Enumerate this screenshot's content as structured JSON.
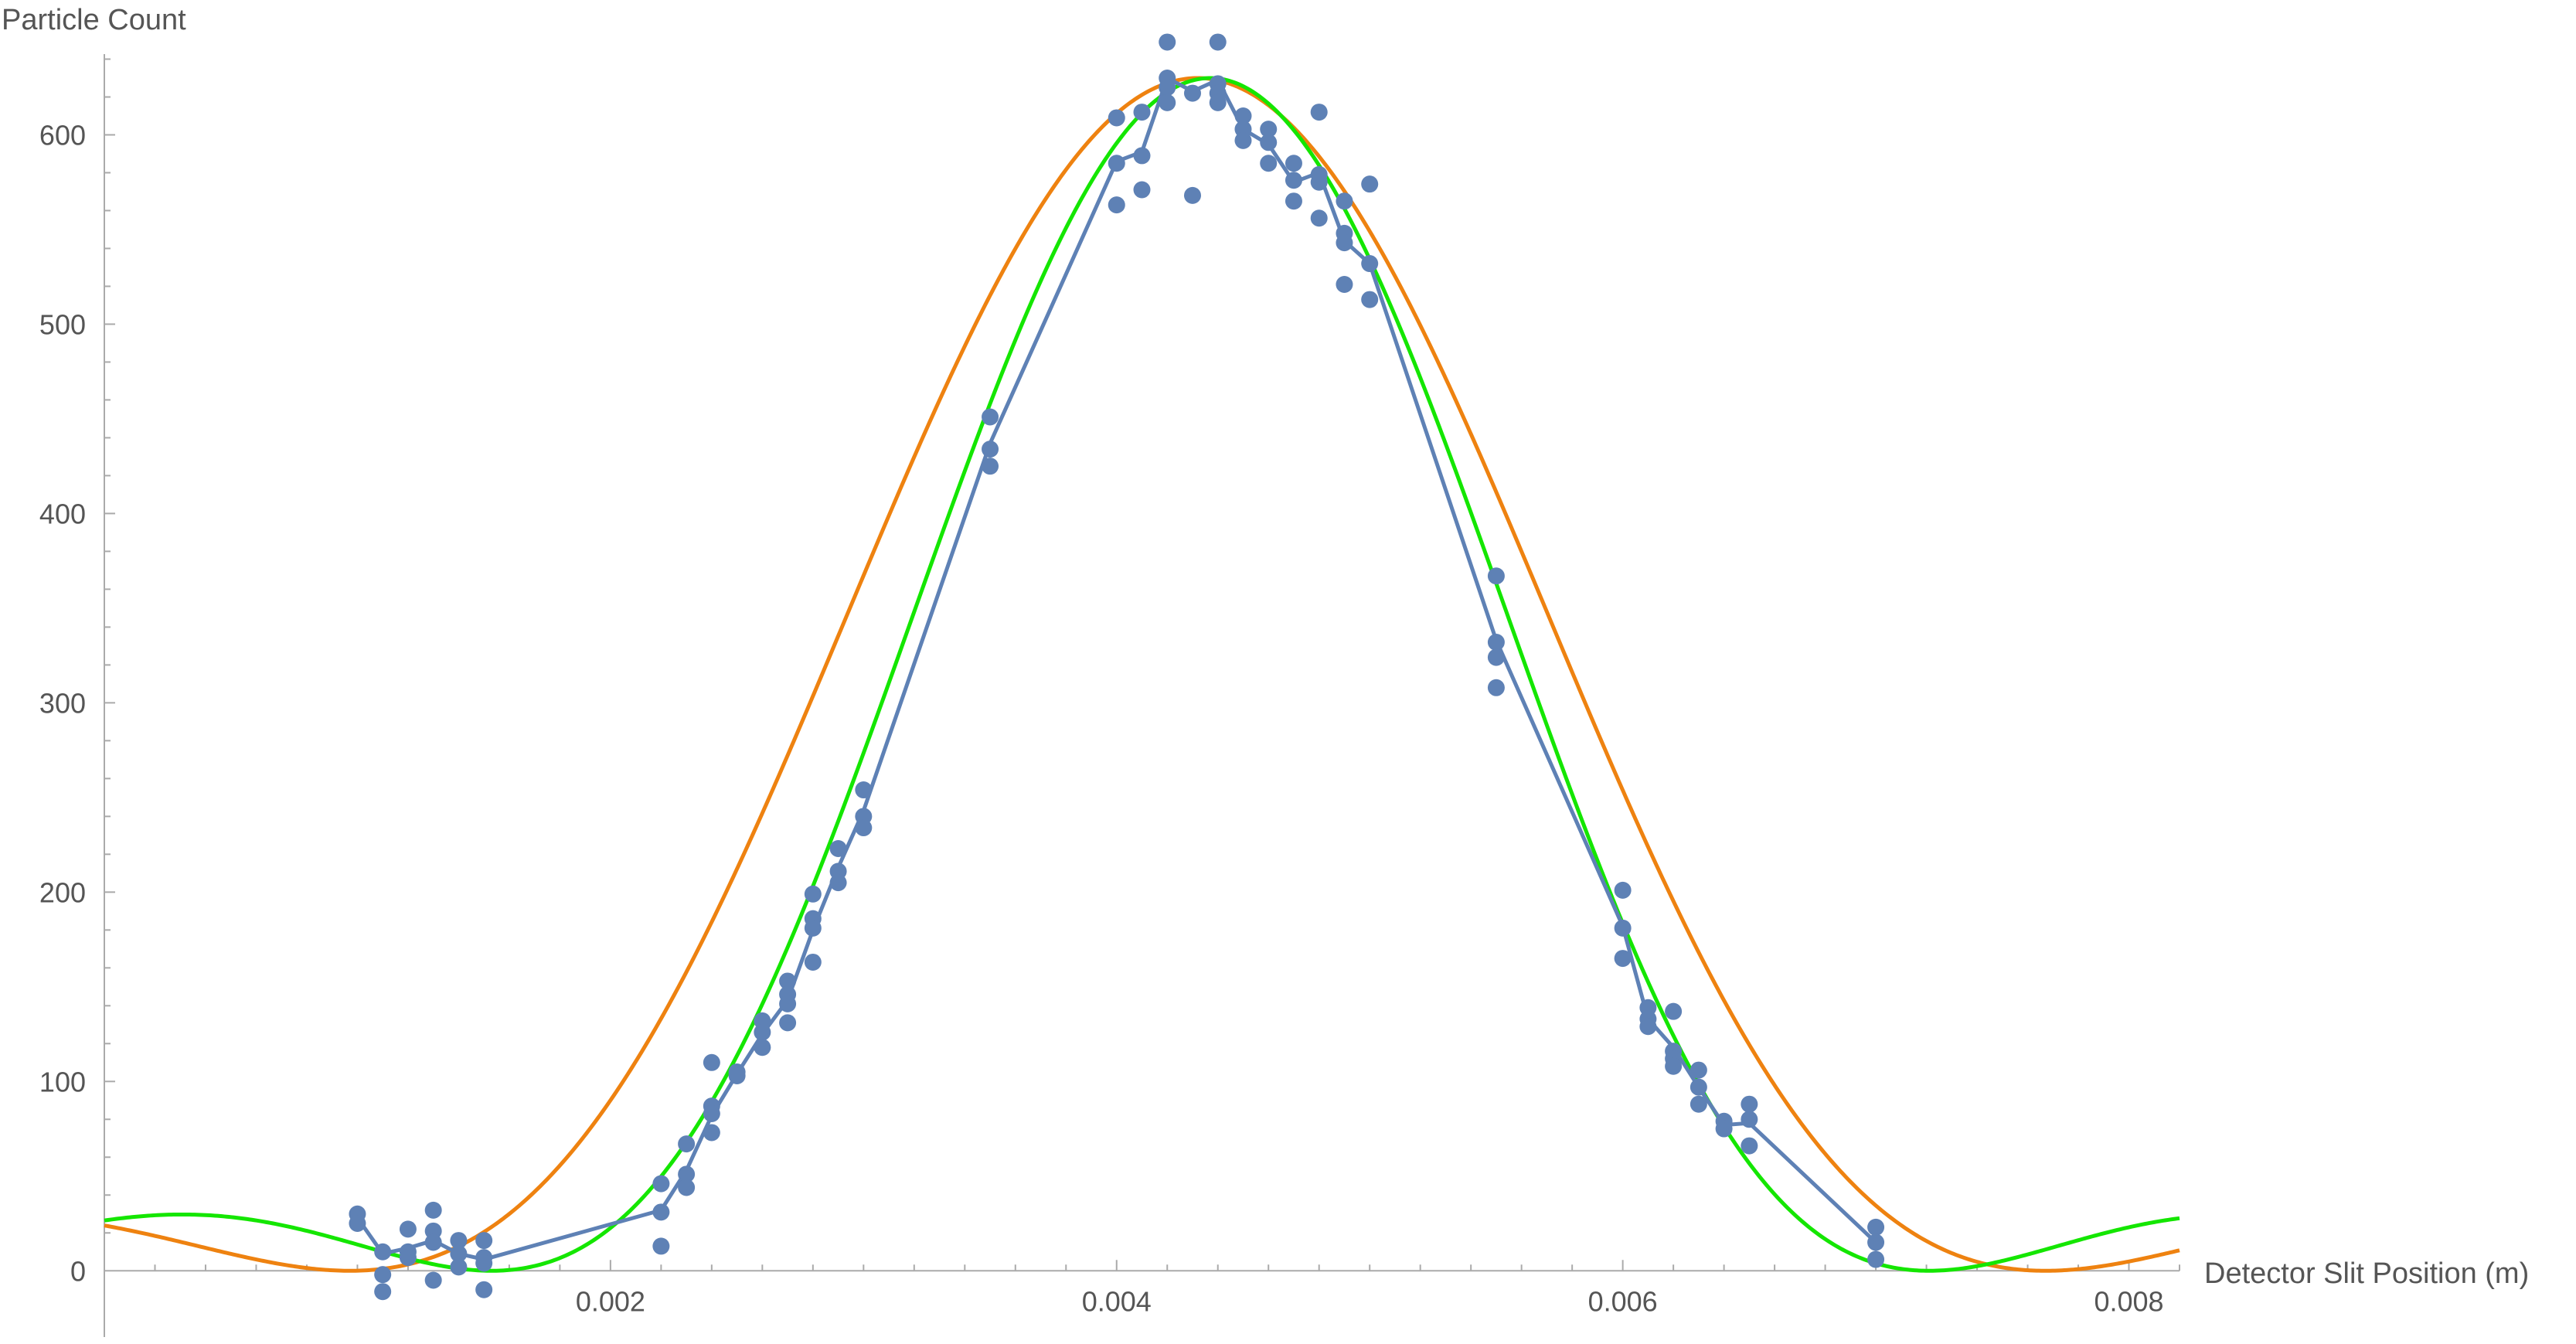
{
  "chart_data": {
    "type": "scatter",
    "xlabel": "Detector Slit Position (m)",
    "ylabel": "Particle Count",
    "xlim": [
      0.0,
      0.0082
    ],
    "ylim": [
      -35,
      650
    ],
    "x_ticks": [
      0.002,
      0.004,
      0.006,
      0.008
    ],
    "x_tick_labels": [
      "0.002",
      "0.004",
      "0.006",
      "0.008"
    ],
    "y_ticks": [
      0,
      100,
      200,
      300,
      400,
      500,
      600
    ],
    "y_tick_labels": [
      "0",
      "100",
      "200",
      "300",
      "400",
      "500",
      "600"
    ],
    "grid": false,
    "colors": {
      "data": "#5e81b5",
      "orange_curve": "#ee8210",
      "green_curve": "#14e600",
      "axis": "#aaaaaa",
      "text": "#555555"
    },
    "series": [
      {
        "type": "scatter",
        "points": [
          [
            0.001,
            30
          ],
          [
            0.001,
            25
          ],
          [
            0.0011,
            10
          ],
          [
            0.0011,
            -2
          ],
          [
            0.0011,
            -11
          ],
          [
            0.0012,
            22
          ],
          [
            0.0012,
            10
          ],
          [
            0.0012,
            7
          ],
          [
            0.0013,
            32
          ],
          [
            0.0013,
            21
          ],
          [
            0.0013,
            15
          ],
          [
            0.0013,
            -5
          ],
          [
            0.0014,
            16
          ],
          [
            0.0014,
            9
          ],
          [
            0.0014,
            2
          ],
          [
            0.0015,
            16
          ],
          [
            0.0015,
            7
          ],
          [
            0.0015,
            4
          ],
          [
            0.0015,
            -10
          ],
          [
            0.0022,
            46
          ],
          [
            0.0022,
            31
          ],
          [
            0.0022,
            13
          ],
          [
            0.0023,
            67
          ],
          [
            0.0023,
            51
          ],
          [
            0.0023,
            44
          ],
          [
            0.0024,
            110
          ],
          [
            0.0024,
            87
          ],
          [
            0.0024,
            83
          ],
          [
            0.0024,
            73
          ],
          [
            0.0025,
            105
          ],
          [
            0.0025,
            103
          ],
          [
            0.0026,
            132
          ],
          [
            0.0026,
            126
          ],
          [
            0.0026,
            118
          ],
          [
            0.0027,
            153
          ],
          [
            0.0027,
            146
          ],
          [
            0.0027,
            141
          ],
          [
            0.0027,
            131
          ],
          [
            0.0028,
            199
          ],
          [
            0.0028,
            186
          ],
          [
            0.0028,
            181
          ],
          [
            0.0028,
            163
          ],
          [
            0.0029,
            223
          ],
          [
            0.0029,
            211
          ],
          [
            0.0029,
            205
          ],
          [
            0.003,
            254
          ],
          [
            0.003,
            240
          ],
          [
            0.003,
            234
          ],
          [
            0.0035,
            451
          ],
          [
            0.0035,
            434
          ],
          [
            0.0035,
            425
          ],
          [
            0.004,
            609
          ],
          [
            0.004,
            585
          ],
          [
            0.004,
            563
          ],
          [
            0.0041,
            612
          ],
          [
            0.0041,
            589
          ],
          [
            0.0041,
            571
          ],
          [
            0.0042,
            649
          ],
          [
            0.0042,
            630
          ],
          [
            0.0042,
            625
          ],
          [
            0.0042,
            617
          ],
          [
            0.0043,
            622
          ],
          [
            0.0043,
            568
          ],
          [
            0.0044,
            649
          ],
          [
            0.0044,
            627
          ],
          [
            0.0044,
            622
          ],
          [
            0.0044,
            617
          ],
          [
            0.0045,
            610
          ],
          [
            0.0045,
            603
          ],
          [
            0.0045,
            597
          ],
          [
            0.0046,
            603
          ],
          [
            0.0046,
            596
          ],
          [
            0.0046,
            585
          ],
          [
            0.0047,
            585
          ],
          [
            0.0047,
            576
          ],
          [
            0.0047,
            565
          ],
          [
            0.0048,
            612
          ],
          [
            0.0048,
            579
          ],
          [
            0.0048,
            575
          ],
          [
            0.0048,
            556
          ],
          [
            0.0049,
            565
          ],
          [
            0.0049,
            548
          ],
          [
            0.0049,
            543
          ],
          [
            0.0049,
            521
          ],
          [
            0.005,
            574
          ],
          [
            0.005,
            532
          ],
          [
            0.005,
            513
          ],
          [
            0.0055,
            367
          ],
          [
            0.0055,
            332
          ],
          [
            0.0055,
            324
          ],
          [
            0.0055,
            308
          ],
          [
            0.006,
            201
          ],
          [
            0.006,
            181
          ],
          [
            0.006,
            165
          ],
          [
            0.0061,
            139
          ],
          [
            0.0061,
            133
          ],
          [
            0.0061,
            129
          ],
          [
            0.0062,
            137
          ],
          [
            0.0062,
            116
          ],
          [
            0.0062,
            112
          ],
          [
            0.0062,
            108
          ],
          [
            0.0063,
            106
          ],
          [
            0.0063,
            97
          ],
          [
            0.0063,
            88
          ],
          [
            0.0064,
            79
          ],
          [
            0.0064,
            75
          ],
          [
            0.0065,
            88
          ],
          [
            0.0065,
            80
          ],
          [
            0.0065,
            66
          ],
          [
            0.007,
            23
          ],
          [
            0.007,
            15
          ],
          [
            0.007,
            6
          ]
        ]
      },
      {
        "type": "line",
        "points": [
          [
            0.001,
            28
          ],
          [
            0.0011,
            9
          ],
          [
            0.0012,
            12
          ],
          [
            0.0013,
            16
          ],
          [
            0.0014,
            9
          ],
          [
            0.0015,
            6
          ],
          [
            0.0022,
            32
          ],
          [
            0.0023,
            53
          ],
          [
            0.0024,
            82
          ],
          [
            0.0025,
            104
          ],
          [
            0.0026,
            125
          ],
          [
            0.0027,
            143
          ],
          [
            0.0028,
            180
          ],
          [
            0.0029,
            213
          ],
          [
            0.003,
            243
          ],
          [
            0.0035,
            437
          ],
          [
            0.004,
            586
          ],
          [
            0.0041,
            591
          ],
          [
            0.0042,
            630
          ],
          [
            0.0043,
            623
          ],
          [
            0.0044,
            629
          ],
          [
            0.0045,
            603
          ],
          [
            0.0046,
            595
          ],
          [
            0.0047,
            575
          ],
          [
            0.0048,
            580
          ],
          [
            0.0049,
            544
          ],
          [
            0.005,
            532
          ],
          [
            0.0055,
            333
          ],
          [
            0.006,
            182
          ],
          [
            0.0061,
            133
          ],
          [
            0.0062,
            118
          ],
          [
            0.0063,
            97
          ],
          [
            0.0064,
            77
          ],
          [
            0.0065,
            78
          ],
          [
            0.007,
            15
          ]
        ]
      },
      {
        "type": "curve",
        "model": "sinc2",
        "amplitude": 630,
        "center": 0.00432,
        "zero_spacing": 0.00335
      },
      {
        "type": "curve",
        "model": "sinc2",
        "amplitude": 630,
        "center": 0.00437,
        "zero_spacing": 0.00284
      }
    ]
  }
}
